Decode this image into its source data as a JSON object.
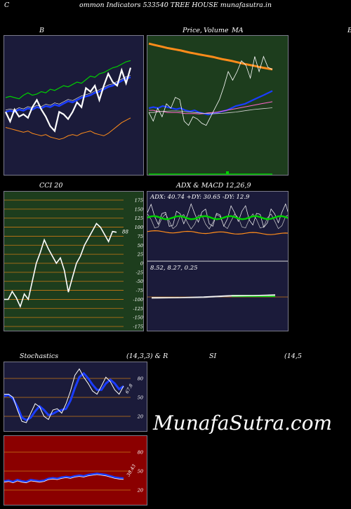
{
  "header": {
    "title": "ommon  Indicators 533540  TREE HOUSE munafasutra.in",
    "left_letter": "C"
  },
  "labels": {
    "bb": "B",
    "price": "Price,",
    "volume": "Volume",
    "ma": "MA",
    "right_edge": "B",
    "cci": "CCI 20",
    "adx_macd": "ADX  & MACD 12,26,9",
    "adx_values": "ADX: 40.74   +DY: 30.65 -DY: 12.9",
    "macd_values": "8.52,  8.27,  0.25",
    "stoch": "Stochastics",
    "stoch_params": "(14,3,3) & R",
    "rsi": "SI",
    "rsi_params": "(14,5",
    "cci_end": "88",
    "stoch_end": "67.8",
    "rsi_end": "38.43",
    "watermark": "MunafaSutra.com"
  },
  "cci_ticks": [
    "175",
    "150",
    "125",
    "100",
    "75",
    "50",
    "25",
    "0",
    "-25",
    "-50",
    "-75",
    "-100",
    "-125",
    "-150",
    "-175"
  ],
  "stoch_ticks": [
    "80",
    "50",
    "20"
  ],
  "rsi_ticks": [
    "80",
    "50",
    "20"
  ],
  "colors": {
    "bb_bg": "#1b1b3a",
    "price_bg": "#1d3d1d",
    "cci_bg": "#1d3d1d",
    "adx_bg": "#1b1b3a",
    "stoch_bg": "#1b1b3a",
    "rsi_bg": "#8b0000",
    "grid_orange": "#c87814",
    "line_white": "#ffffff",
    "line_blue": "#1a3cff",
    "line_green": "#00d000",
    "line_orange": "#ff8c1a"
  },
  "chart_data": [
    {
      "type": "line",
      "title": "B",
      "series_count": 4,
      "series": [
        {
          "values": [
            120,
            121,
            120,
            119,
            122,
            124,
            122,
            123,
            125,
            124,
            127,
            126,
            128,
            130,
            129,
            131,
            133,
            132,
            135,
            138,
            137,
            140,
            141,
            143,
            145,
            146,
            148,
            150,
            151
          ]
        },
        {
          "values": [
            108,
            109,
            108,
            110,
            109,
            111,
            110,
            112,
            111,
            113,
            112,
            114,
            113,
            115,
            117,
            116,
            118,
            120,
            121,
            122,
            124,
            125,
            127,
            129,
            130,
            132,
            134,
            136,
            137
          ]
        },
        {
          "values": [
            95,
            94,
            93,
            92,
            91,
            92,
            90,
            89,
            88,
            89,
            87,
            86,
            85,
            86,
            88,
            89,
            88,
            90,
            91,
            92,
            90,
            89,
            88,
            90,
            93,
            96,
            99,
            101,
            103
          ]
        },
        {
          "values": [
            108,
            100,
            110,
            104,
            106,
            103,
            112,
            118,
            110,
            104,
            96,
            92,
            108,
            106,
            102,
            108,
            116,
            112,
            128,
            125,
            130,
            118,
            130,
            140,
            133,
            130,
            143,
            132,
            145
          ]
        }
      ]
    },
    {
      "type": "line",
      "title": "Price, Volume MA",
      "series_count": 5,
      "series": [
        {
          "values": [
            100,
            99.5,
            99,
            98.5,
            98,
            97.6,
            97.2,
            96.8,
            96.3,
            95.8,
            95.4,
            95,
            94.6,
            94.2,
            93.8,
            93.3,
            92.8,
            92.4,
            92,
            91.5,
            91,
            90.5,
            90.1,
            89.7,
            89.2,
            88.8,
            88.4,
            88
          ]
        },
        {
          "values": [
            70,
            70.5,
            70,
            71,
            70.5,
            70,
            69.5,
            70,
            69,
            68.5,
            69,
            68,
            67.5,
            67,
            67.5,
            68,
            68.5,
            69,
            70,
            71,
            71.5,
            72,
            73,
            74,
            75,
            76,
            77,
            78
          ]
        },
        {
          "values": [
            69,
            69,
            68.5,
            68.5,
            68,
            68,
            68,
            67.8,
            67.5,
            67.5,
            67.5,
            67.3,
            67.5,
            67.8,
            68,
            68.2,
            68.6,
            69,
            69.4,
            69.8,
            70.2,
            70.6,
            71,
            71.4,
            71.8,
            72.2,
            72.6,
            73
          ]
        },
        {
          "values": [
            68,
            68,
            68.3,
            68.5,
            68.6,
            68.7,
            68.7,
            68.6,
            68.4,
            68.2,
            68,
            67.8,
            67.6,
            67.5,
            67.4,
            67.5,
            67.6,
            67.8,
            68,
            68.2,
            68.5,
            68.8,
            69.1,
            69.4,
            69.6,
            69.8,
            70,
            70.2
          ]
        },
        {
          "values": [
            68,
            64,
            70,
            66,
            72,
            70,
            75,
            74,
            64,
            62,
            66,
            65,
            63,
            62,
            66,
            70,
            74,
            80,
            87,
            83,
            87,
            92,
            90,
            84,
            94,
            87,
            94,
            89,
            88
          ]
        }
      ]
    },
    {
      "type": "line",
      "title": "CCI 20",
      "ylim": [
        -175,
        175
      ],
      "x": [
        1,
        2,
        3,
        4,
        5,
        6,
        7,
        8,
        9,
        10,
        11,
        12,
        13,
        14,
        15,
        16,
        17,
        18,
        19,
        20,
        21,
        22,
        23,
        24,
        25,
        26,
        27,
        28,
        29,
        30,
        31,
        32,
        33,
        34,
        35
      ],
      "values": [
        -100,
        -100,
        -78,
        -95,
        -120,
        -85,
        -100,
        -50,
        0,
        30,
        65,
        40,
        20,
        0,
        15,
        -20,
        -80,
        -40,
        0,
        20,
        50,
        70,
        90,
        110,
        100,
        80,
        60,
        88,
        86,
        88,
        88,
        88,
        88,
        88,
        88
      ]
    },
    {
      "type": "line",
      "title": "ADX",
      "adx": 40.74,
      "plus_di": 30.65,
      "minus_di": 12.9
    },
    {
      "type": "line",
      "title": "MACD 12,26,9",
      "macd": 8.52,
      "signal": 8.27,
      "histogram": 0.25
    },
    {
      "type": "line",
      "title": "Stochastics (14,3,3)",
      "ylim": [
        0,
        100
      ],
      "series": [
        {
          "name": "%K",
          "values": [
            55,
            55,
            50,
            30,
            12,
            10,
            25,
            40,
            35,
            20,
            15,
            30,
            32,
            25,
            40,
            60,
            85,
            95,
            82,
            72,
            60,
            55,
            68,
            82,
            75,
            62,
            55,
            68
          ]
        },
        {
          "name": "%D",
          "values": [
            52,
            54,
            48,
            35,
            18,
            14,
            18,
            28,
            36,
            30,
            22,
            24,
            28,
            30,
            32,
            45,
            65,
            82,
            88,
            80,
            70,
            62,
            62,
            72,
            78,
            72,
            63,
            67.8
          ]
        }
      ]
    },
    {
      "type": "line",
      "title": "RSI (14",
      "ylim": [
        0,
        100
      ],
      "series": [
        {
          "values": [
            34,
            35,
            33,
            36,
            34,
            33,
            36,
            35,
            34,
            35,
            38,
            39,
            38,
            40,
            41,
            40,
            42,
            43,
            42,
            44,
            45,
            46,
            45,
            44,
            42,
            40,
            39,
            38.43
          ]
        }
      ]
    }
  ]
}
